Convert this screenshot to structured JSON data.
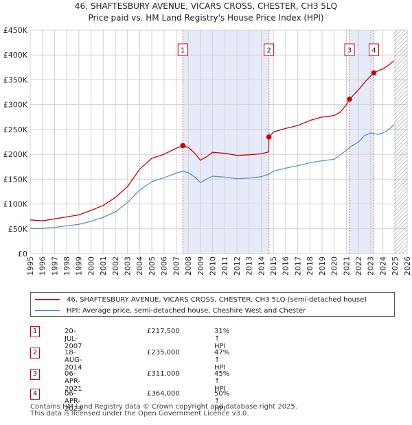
{
  "chart_data": {
    "type": "line",
    "title": "46, SHAFTESBURY AVENUE, VICARS CROSS, CHESTER, CH3 5LQ",
    "subtitle": "Price paid vs. HM Land Registry's House Price Index (HPI)",
    "xlim": [
      1995,
      2026
    ],
    "ylim": [
      0,
      450000
    ],
    "x_ticks": [
      1995,
      1996,
      1997,
      1998,
      1999,
      2000,
      2001,
      2002,
      2003,
      2004,
      2005,
      2006,
      2007,
      2008,
      2009,
      2010,
      2011,
      2012,
      2013,
      2014,
      2015,
      2016,
      2017,
      2018,
      2019,
      2020,
      2021,
      2022,
      2023,
      2024,
      2025,
      2026
    ],
    "y_ticks": [
      {
        "value": 0,
        "label": "£0"
      },
      {
        "value": 50000,
        "label": "£50K"
      },
      {
        "value": 100000,
        "label": "£100K"
      },
      {
        "value": 150000,
        "label": "£150K"
      },
      {
        "value": 200000,
        "label": "£200K"
      },
      {
        "value": 250000,
        "label": "£250K"
      },
      {
        "value": 300000,
        "label": "£300K"
      },
      {
        "value": 350000,
        "label": "£350K"
      },
      {
        "value": 400000,
        "label": "£400K"
      },
      {
        "value": 450000,
        "label": "£450K"
      }
    ],
    "data_end_year": 2024.9,
    "shaded_periods": [
      [
        2007.55,
        2014.63
      ],
      [
        2021.26,
        2023.26
      ]
    ],
    "series": [
      {
        "name": "46, SHAFTESBURY AVENUE, VICARS CROSS, CHESTER, CH3 5LQ (semi-detached house)",
        "color": "#cc0000",
        "x": [
          1995,
          1996,
          1997,
          1998,
          1999,
          2000,
          2001,
          2002,
          2003,
          2004,
          2005,
          2006,
          2007,
          2007.55,
          2008,
          2008.5,
          2009,
          2009.5,
          2010,
          2011,
          2012,
          2013,
          2014,
          2014.62,
          2014.63,
          2015,
          2016,
          2017,
          2018,
          2019,
          2020,
          2020.5,
          2021,
          2021.26,
          2022,
          2022.5,
          2023,
          2023.26,
          2023.6,
          2024,
          2024.5,
          2024.9
        ],
        "y": [
          68000,
          66000,
          70000,
          74000,
          78000,
          87000,
          97000,
          113000,
          135000,
          170000,
          192000,
          200000,
          212000,
          217500,
          214000,
          203000,
          188000,
          195000,
          204000,
          202000,
          198000,
          199000,
          201000,
          205000,
          235000,
          245000,
          252000,
          258000,
          268000,
          275000,
          278000,
          285000,
          300000,
          311000,
          330000,
          345000,
          358000,
          364000,
          368000,
          372000,
          380000,
          388000
        ]
      },
      {
        "name": "HPI: Average price, semi-detached house, Cheshire West and Chester",
        "color": "#5b8fc9",
        "x": [
          1995,
          1996,
          1997,
          1998,
          1999,
          2000,
          2001,
          2002,
          2003,
          2004,
          2005,
          2006,
          2007,
          2007.55,
          2008,
          2008.5,
          2009,
          2009.5,
          2010,
          2011,
          2012,
          2013,
          2014,
          2014.63,
          2015,
          2016,
          2017,
          2018,
          2019,
          2020,
          2021,
          2021.26,
          2022,
          2022.5,
          2023,
          2023.26,
          2023.6,
          2024,
          2024.5,
          2024.9
        ],
        "y": [
          51000,
          50500,
          53000,
          56000,
          59000,
          65000,
          73000,
          84000,
          103000,
          128000,
          145000,
          153000,
          162000,
          166000,
          163000,
          155000,
          143000,
          150000,
          156000,
          154000,
          151000,
          152000,
          155000,
          160000,
          166000,
          172000,
          177000,
          183000,
          187000,
          190000,
          208000,
          214000,
          225000,
          238000,
          243000,
          242000,
          240000,
          243000,
          250000,
          260000
        ]
      }
    ],
    "sales": [
      {
        "label": "1",
        "date": "20-JUL-2007",
        "x": 2007.55,
        "price_value": 217500,
        "price": "£217,500",
        "hpi": "31% ↑ HPI"
      },
      {
        "label": "2",
        "date": "18-AUG-2014",
        "x": 2014.63,
        "price_value": 235000,
        "price": "£235,000",
        "hpi": "47% ↑ HPI"
      },
      {
        "label": "3",
        "date": "06-APR-2021",
        "x": 2021.26,
        "price_value": 311000,
        "price": "£311,000",
        "hpi": "45% ↑ HPI"
      },
      {
        "label": "4",
        "date": "06-APR-2023",
        "x": 2023.26,
        "price_value": 364000,
        "price": "£364,000",
        "hpi": "50% ↑ HPI"
      }
    ],
    "legend": {
      "property": "46, SHAFTESBURY AVENUE, VICARS CROSS, CHESTER, CH3 5LQ (semi-detached house)",
      "hpi": "HPI: Average price, semi-detached house, Cheshire West and Chester"
    }
  },
  "footer": {
    "line1": "Contains HM Land Registry data © Crown copyright and database right 2025.",
    "line2": "This data is licensed under the Open Government Licence v3.0."
  },
  "colors": {
    "property": "#cc0000",
    "hpi": "#5b8fc9",
    "shade": "#e6ebfa",
    "grid": "#d0d0d0"
  }
}
